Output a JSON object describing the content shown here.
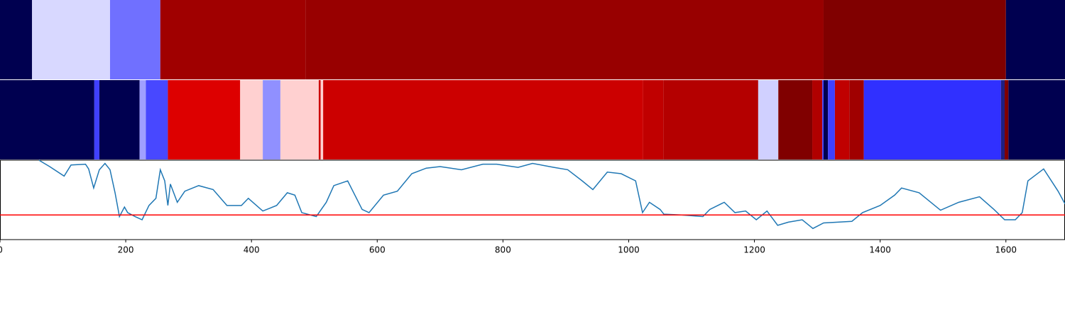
{
  "chart_data": [
    {
      "type": "strip",
      "xlim": [
        0,
        1694
      ],
      "segments": [
        {
          "start": 0,
          "end": 51,
          "color": "#000050"
        },
        {
          "start": 51,
          "end": 175,
          "color": "#d8d8ff"
        },
        {
          "start": 175,
          "end": 255,
          "color": "#7070ff"
        },
        {
          "start": 255,
          "end": 486,
          "color": "#a00000"
        },
        {
          "start": 486,
          "end": 1310,
          "color": "#980000"
        },
        {
          "start": 1310,
          "end": 1600,
          "color": "#800000"
        },
        {
          "start": 1600,
          "end": 1694,
          "color": "#000050"
        }
      ]
    },
    {
      "type": "strip",
      "xlim": [
        0,
        1694
      ],
      "segments": [
        {
          "start": 0,
          "end": 150,
          "color": "#000050"
        },
        {
          "start": 150,
          "end": 158,
          "color": "#4040ff"
        },
        {
          "start": 158,
          "end": 222,
          "color": "#000050"
        },
        {
          "start": 222,
          "end": 232,
          "color": "#a0a0ff"
        },
        {
          "start": 232,
          "end": 267,
          "color": "#4848ff"
        },
        {
          "start": 267,
          "end": 382,
          "color": "#dd0000"
        },
        {
          "start": 382,
          "end": 418,
          "color": "#ffd0d0"
        },
        {
          "start": 418,
          "end": 446,
          "color": "#9090ff"
        },
        {
          "start": 446,
          "end": 507,
          "color": "#ffd0d0"
        },
        {
          "start": 507,
          "end": 510,
          "color": "#cc0000"
        },
        {
          "start": 510,
          "end": 514,
          "color": "#ffd0d0"
        },
        {
          "start": 514,
          "end": 1023,
          "color": "#cc0000"
        },
        {
          "start": 1023,
          "end": 1055,
          "color": "#c00000"
        },
        {
          "start": 1055,
          "end": 1206,
          "color": "#b40000"
        },
        {
          "start": 1206,
          "end": 1238,
          "color": "#d0d0ff"
        },
        {
          "start": 1238,
          "end": 1292,
          "color": "#800000"
        },
        {
          "start": 1292,
          "end": 1308,
          "color": "#b00000"
        },
        {
          "start": 1308,
          "end": 1310,
          "color": "#4040ff"
        },
        {
          "start": 1310,
          "end": 1317,
          "color": "#000050"
        },
        {
          "start": 1317,
          "end": 1328,
          "color": "#4040ff"
        },
        {
          "start": 1328,
          "end": 1351,
          "color": "#c00000"
        },
        {
          "start": 1351,
          "end": 1374,
          "color": "#a00000"
        },
        {
          "start": 1374,
          "end": 1592,
          "color": "#3030ff"
        },
        {
          "start": 1592,
          "end": 1598,
          "color": "#202080"
        },
        {
          "start": 1598,
          "end": 1604,
          "color": "#800000"
        },
        {
          "start": 1604,
          "end": 1694,
          "color": "#000050"
        }
      ]
    },
    {
      "type": "line",
      "xlim": [
        0,
        1694
      ],
      "ylim": [
        0,
        1
      ],
      "color": "#1f77b4",
      "xticks": [
        0,
        200,
        400,
        600,
        800,
        1000,
        1200,
        1400,
        1600
      ],
      "hline": {
        "value": 0.31,
        "color": "#ff0000"
      },
      "x": [
        62,
        79,
        102,
        113,
        136,
        141,
        149,
        158,
        167,
        175,
        183,
        190,
        198,
        203,
        215,
        226,
        237,
        248,
        255,
        262,
        267,
        271,
        282,
        294,
        316,
        339,
        361,
        384,
        395,
        418,
        440,
        457,
        469,
        480,
        503,
        519,
        531,
        553,
        576,
        587,
        610,
        632,
        655,
        678,
        700,
        734,
        768,
        790,
        824,
        847,
        881,
        903,
        926,
        943,
        966,
        988,
        1011,
        1022,
        1033,
        1050,
        1056,
        1084,
        1118,
        1129,
        1152,
        1169,
        1186,
        1203,
        1220,
        1237,
        1254,
        1276,
        1293,
        1310,
        1355,
        1372,
        1400,
        1423,
        1434,
        1462,
        1496,
        1525,
        1558,
        1581,
        1598,
        1615,
        1626,
        1635,
        1660,
        1683,
        1694
      ],
      "values": [
        1.0,
        0.92,
        0.8,
        0.94,
        0.95,
        0.89,
        0.65,
        0.88,
        0.96,
        0.88,
        0.59,
        0.29,
        0.41,
        0.34,
        0.29,
        0.25,
        0.43,
        0.52,
        0.88,
        0.74,
        0.43,
        0.7,
        0.47,
        0.61,
        0.68,
        0.63,
        0.43,
        0.43,
        0.52,
        0.36,
        0.43,
        0.59,
        0.56,
        0.34,
        0.29,
        0.47,
        0.68,
        0.74,
        0.38,
        0.34,
        0.56,
        0.61,
        0.83,
        0.9,
        0.92,
        0.88,
        0.95,
        0.95,
        0.91,
        0.96,
        0.91,
        0.88,
        0.74,
        0.63,
        0.85,
        0.83,
        0.74,
        0.34,
        0.47,
        0.38,
        0.32,
        0.31,
        0.29,
        0.38,
        0.47,
        0.34,
        0.36,
        0.25,
        0.36,
        0.18,
        0.22,
        0.25,
        0.14,
        0.21,
        0.23,
        0.34,
        0.43,
        0.56,
        0.65,
        0.59,
        0.37,
        0.47,
        0.54,
        0.38,
        0.25,
        0.25,
        0.34,
        0.74,
        0.89,
        0.61,
        0.45
      ]
    }
  ]
}
